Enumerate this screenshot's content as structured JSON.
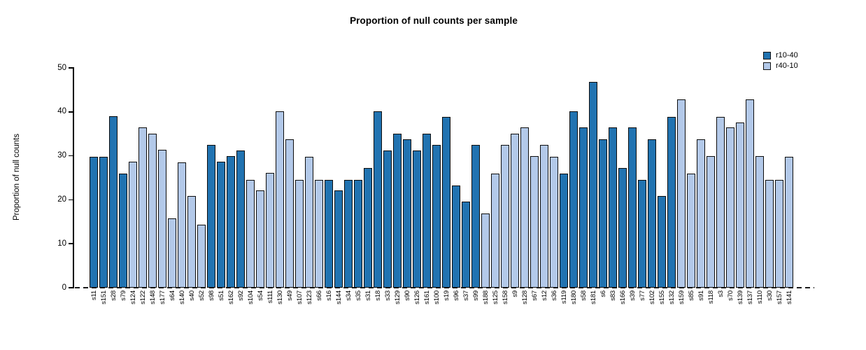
{
  "chart_data": {
    "type": "bar",
    "title": "Proportion of null counts per sample",
    "ylabel": "Proportion of null counts",
    "xlabel": "",
    "ylim": [
      0,
      50
    ],
    "y_ticks": [
      0,
      10,
      20,
      30,
      40,
      50
    ],
    "grid": false,
    "legend_position": "top-right",
    "zero_line_style": "dashed",
    "legend": [
      "r10-40",
      "r40-10"
    ],
    "series_colors": {
      "r10-40": "#2173B1",
      "r40-10": "#B3C9E9"
    },
    "bars": [
      {
        "label": "s11",
        "value": 29.8,
        "series": "r10-40"
      },
      {
        "label": "s151",
        "value": 29.8,
        "series": "r10-40"
      },
      {
        "label": "s28",
        "value": 39.0,
        "series": "r10-40"
      },
      {
        "label": "s79",
        "value": 26.0,
        "series": "r10-40"
      },
      {
        "label": "s124",
        "value": 28.6,
        "series": "r40-10"
      },
      {
        "label": "s122",
        "value": 36.4,
        "series": "r40-10"
      },
      {
        "label": "s148",
        "value": 35.0,
        "series": "r40-10"
      },
      {
        "label": "s177",
        "value": 31.3,
        "series": "r40-10"
      },
      {
        "label": "s64",
        "value": 15.7,
        "series": "r40-10"
      },
      {
        "label": "s140",
        "value": 28.5,
        "series": "r40-10"
      },
      {
        "label": "s40",
        "value": 20.8,
        "series": "r40-10"
      },
      {
        "label": "s52",
        "value": 14.3,
        "series": "r40-10"
      },
      {
        "label": "s98",
        "value": 32.5,
        "series": "r10-40"
      },
      {
        "label": "s51",
        "value": 28.6,
        "series": "r10-40"
      },
      {
        "label": "s162",
        "value": 29.9,
        "series": "r10-40"
      },
      {
        "label": "s92",
        "value": 31.2,
        "series": "r10-40"
      },
      {
        "label": "s104",
        "value": 24.6,
        "series": "r40-10"
      },
      {
        "label": "s54",
        "value": 22.1,
        "series": "r40-10"
      },
      {
        "label": "s111",
        "value": 26.1,
        "series": "r40-10"
      },
      {
        "label": "s130",
        "value": 40.2,
        "series": "r40-10"
      },
      {
        "label": "s49",
        "value": 33.8,
        "series": "r40-10"
      },
      {
        "label": "s107",
        "value": 24.6,
        "series": "r40-10"
      },
      {
        "label": "s123",
        "value": 29.8,
        "series": "r40-10"
      },
      {
        "label": "s66",
        "value": 24.6,
        "series": "r40-10"
      },
      {
        "label": "s16",
        "value": 24.6,
        "series": "r10-40"
      },
      {
        "label": "s144",
        "value": 22.1,
        "series": "r10-40"
      },
      {
        "label": "s34",
        "value": 24.6,
        "series": "r10-40"
      },
      {
        "label": "s35",
        "value": 24.6,
        "series": "r10-40"
      },
      {
        "label": "s31",
        "value": 27.3,
        "series": "r10-40"
      },
      {
        "label": "s18",
        "value": 40.2,
        "series": "r10-40"
      },
      {
        "label": "s33",
        "value": 31.2,
        "series": "r10-40"
      },
      {
        "label": "s129",
        "value": 35.0,
        "series": "r10-40"
      },
      {
        "label": "s90",
        "value": 33.7,
        "series": "r10-40"
      },
      {
        "label": "s126",
        "value": 31.2,
        "series": "r10-40"
      },
      {
        "label": "s161",
        "value": 35.0,
        "series": "r10-40"
      },
      {
        "label": "s100",
        "value": 32.5,
        "series": "r10-40"
      },
      {
        "label": "s19",
        "value": 38.9,
        "series": "r10-40"
      },
      {
        "label": "s96",
        "value": 23.3,
        "series": "r10-40"
      },
      {
        "label": "s37",
        "value": 19.6,
        "series": "r10-40"
      },
      {
        "label": "s99",
        "value": 32.5,
        "series": "r10-40"
      },
      {
        "label": "s188",
        "value": 16.9,
        "series": "r40-10"
      },
      {
        "label": "s125",
        "value": 26.0,
        "series": "r40-10"
      },
      {
        "label": "s158",
        "value": 32.5,
        "series": "r40-10"
      },
      {
        "label": "s9",
        "value": 35.0,
        "series": "r40-10"
      },
      {
        "label": "s128",
        "value": 36.4,
        "series": "r40-10"
      },
      {
        "label": "s67",
        "value": 29.9,
        "series": "r40-10"
      },
      {
        "label": "s12",
        "value": 32.5,
        "series": "r40-10"
      },
      {
        "label": "s36",
        "value": 29.8,
        "series": "r40-10"
      },
      {
        "label": "s119",
        "value": 26.0,
        "series": "r10-40"
      },
      {
        "label": "s180",
        "value": 40.2,
        "series": "r10-40"
      },
      {
        "label": "s58",
        "value": 36.4,
        "series": "r10-40"
      },
      {
        "label": "s181",
        "value": 46.8,
        "series": "r10-40"
      },
      {
        "label": "s6",
        "value": 33.8,
        "series": "r10-40"
      },
      {
        "label": "s83",
        "value": 36.4,
        "series": "r10-40"
      },
      {
        "label": "s166",
        "value": 27.3,
        "series": "r10-40"
      },
      {
        "label": "s39",
        "value": 36.4,
        "series": "r10-40"
      },
      {
        "label": "s77",
        "value": 24.6,
        "series": "r10-40"
      },
      {
        "label": "s102",
        "value": 33.8,
        "series": "r10-40"
      },
      {
        "label": "s155",
        "value": 20.9,
        "series": "r10-40"
      },
      {
        "label": "s132",
        "value": 38.9,
        "series": "r10-40"
      },
      {
        "label": "s159",
        "value": 42.8,
        "series": "r40-10"
      },
      {
        "label": "s85",
        "value": 26.0,
        "series": "r40-10"
      },
      {
        "label": "s91",
        "value": 33.8,
        "series": "r40-10"
      },
      {
        "label": "s118",
        "value": 29.9,
        "series": "r40-10"
      },
      {
        "label": "s3",
        "value": 38.9,
        "series": "r40-10"
      },
      {
        "label": "s70",
        "value": 36.4,
        "series": "r40-10"
      },
      {
        "label": "s139",
        "value": 37.6,
        "series": "r40-10"
      },
      {
        "label": "s137",
        "value": 42.8,
        "series": "r40-10"
      },
      {
        "label": "s110",
        "value": 29.9,
        "series": "r40-10"
      },
      {
        "label": "s30",
        "value": 24.6,
        "series": "r40-10"
      },
      {
        "label": "s157",
        "value": 24.6,
        "series": "r40-10"
      },
      {
        "label": "s141",
        "value": 29.8,
        "series": "r40-10"
      }
    ]
  }
}
